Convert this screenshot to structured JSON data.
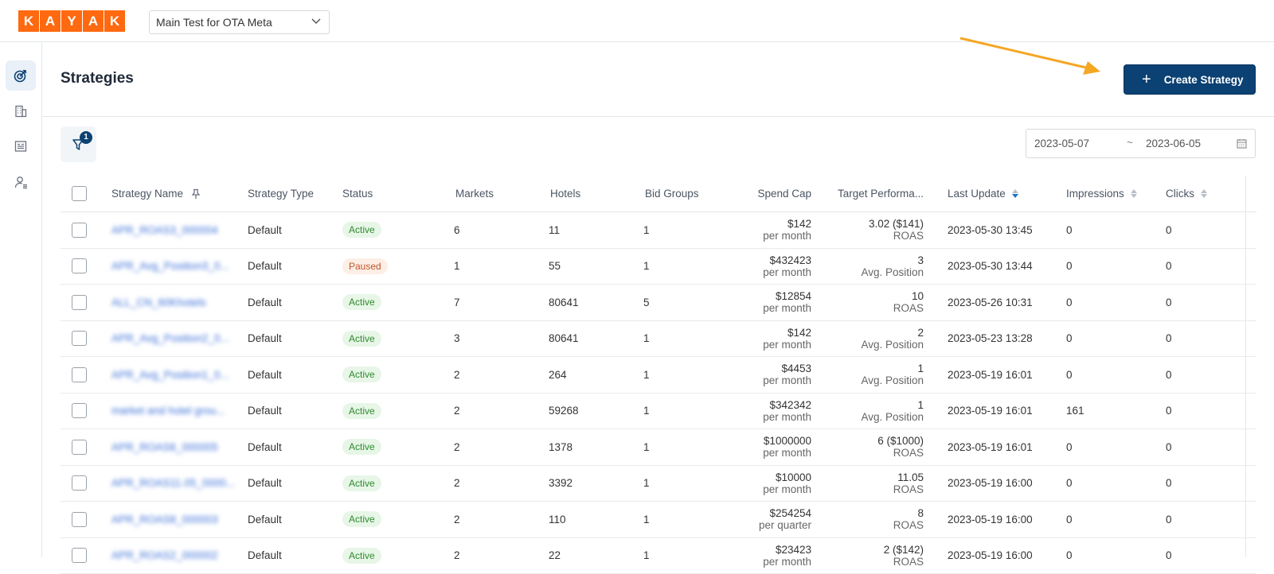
{
  "brand": {
    "letters": [
      "K",
      "A",
      "Y",
      "A",
      "K"
    ],
    "color": "#ff690f"
  },
  "account_select": {
    "value": "Main Test for OTA Meta"
  },
  "rail": {
    "items": [
      {
        "icon": "target-icon",
        "active": true
      },
      {
        "icon": "building-icon",
        "active": false
      },
      {
        "icon": "report-icon",
        "active": false
      },
      {
        "icon": "user-settings-icon",
        "active": false
      }
    ]
  },
  "page": {
    "title": "Strategies"
  },
  "create_button": {
    "label": "Create Strategy"
  },
  "filter": {
    "badge": "1"
  },
  "date_range": {
    "start": "2023-05-07",
    "separator": "~",
    "end": "2023-06-05"
  },
  "table": {
    "headers": {
      "name": "Strategy Name",
      "type": "Strategy Type",
      "status": "Status",
      "markets": "Markets",
      "hotels": "Hotels",
      "bid_groups": "Bid Groups",
      "spend_cap": "Spend Cap",
      "target": "Target Performa...",
      "last_update": "Last Update",
      "impressions": "Impressions",
      "clicks": "Clicks"
    },
    "rows": [
      {
        "name": "APR_ROAS3_000004",
        "type": "Default",
        "status": "Active",
        "markets": "6",
        "hotels": "11",
        "bid_groups": "1",
        "spend_cap": "$142",
        "spend_period": "per month",
        "target": "3.02 ($141)",
        "target_metric": "ROAS",
        "last_update": "2023-05-30 13:45",
        "impressions": "0",
        "clicks": "0"
      },
      {
        "name": "APR_Avg_Position3_0...",
        "type": "Default",
        "status": "Paused",
        "markets": "1",
        "hotels": "55",
        "bid_groups": "1",
        "spend_cap": "$432423",
        "spend_period": "per month",
        "target": "3",
        "target_metric": "Avg. Position",
        "last_update": "2023-05-30 13:44",
        "impressions": "0",
        "clicks": "0"
      },
      {
        "name": "ALL_CN_60Khotels",
        "type": "Default",
        "status": "Active",
        "markets": "7",
        "hotels": "80641",
        "bid_groups": "5",
        "spend_cap": "$12854",
        "spend_period": "per month",
        "target": "10",
        "target_metric": "ROAS",
        "last_update": "2023-05-26 10:31",
        "impressions": "0",
        "clicks": "0"
      },
      {
        "name": "APR_Avg_Position2_0...",
        "type": "Default",
        "status": "Active",
        "markets": "3",
        "hotels": "80641",
        "bid_groups": "1",
        "spend_cap": "$142",
        "spend_period": "per month",
        "target": "2",
        "target_metric": "Avg. Position",
        "last_update": "2023-05-23 13:28",
        "impressions": "0",
        "clicks": "0"
      },
      {
        "name": "APR_Avg_Position1_0...",
        "type": "Default",
        "status": "Active",
        "markets": "2",
        "hotels": "264",
        "bid_groups": "1",
        "spend_cap": "$4453",
        "spend_period": "per month",
        "target": "1",
        "target_metric": "Avg. Position",
        "last_update": "2023-05-19 16:01",
        "impressions": "0",
        "clicks": "0"
      },
      {
        "name": "market and hotel grou...",
        "type": "Default",
        "status": "Active",
        "markets": "2",
        "hotels": "59268",
        "bid_groups": "1",
        "spend_cap": "$342342",
        "spend_period": "per month",
        "target": "1",
        "target_metric": "Avg. Position",
        "last_update": "2023-05-19 16:01",
        "impressions": "161",
        "clicks": "0"
      },
      {
        "name": "APR_ROAS6_000005",
        "type": "Default",
        "status": "Active",
        "markets": "2",
        "hotels": "1378",
        "bid_groups": "1",
        "spend_cap": "$1000000",
        "spend_period": "per month",
        "target": "6 ($1000)",
        "target_metric": "ROAS",
        "last_update": "2023-05-19 16:01",
        "impressions": "0",
        "clicks": "0"
      },
      {
        "name": "APR_ROAS11.05_0000...",
        "type": "Default",
        "status": "Active",
        "markets": "2",
        "hotels": "3392",
        "bid_groups": "1",
        "spend_cap": "$10000",
        "spend_period": "per month",
        "target": "11.05",
        "target_metric": "ROAS",
        "last_update": "2023-05-19 16:00",
        "impressions": "0",
        "clicks": "0"
      },
      {
        "name": "APR_ROAS8_000003",
        "type": "Default",
        "status": "Active",
        "markets": "2",
        "hotels": "110",
        "bid_groups": "1",
        "spend_cap": "$254254",
        "spend_period": "per quarter",
        "target": "8",
        "target_metric": "ROAS",
        "last_update": "2023-05-19 16:00",
        "impressions": "0",
        "clicks": "0"
      },
      {
        "name": "APR_ROAS2_000002",
        "type": "Default",
        "status": "Active",
        "markets": "2",
        "hotels": "22",
        "bid_groups": "1",
        "spend_cap": "$23423",
        "spend_period": "per month",
        "target": "2 ($142)",
        "target_metric": "ROAS",
        "last_update": "2023-05-19 16:00",
        "impressions": "0",
        "clicks": "0"
      }
    ]
  },
  "colors": {
    "primary": "#0b4173",
    "annotation_arrow": "#f5a623",
    "link": "#3b6fd8",
    "active": "#2e8b2e",
    "paused": "#c0562a"
  }
}
